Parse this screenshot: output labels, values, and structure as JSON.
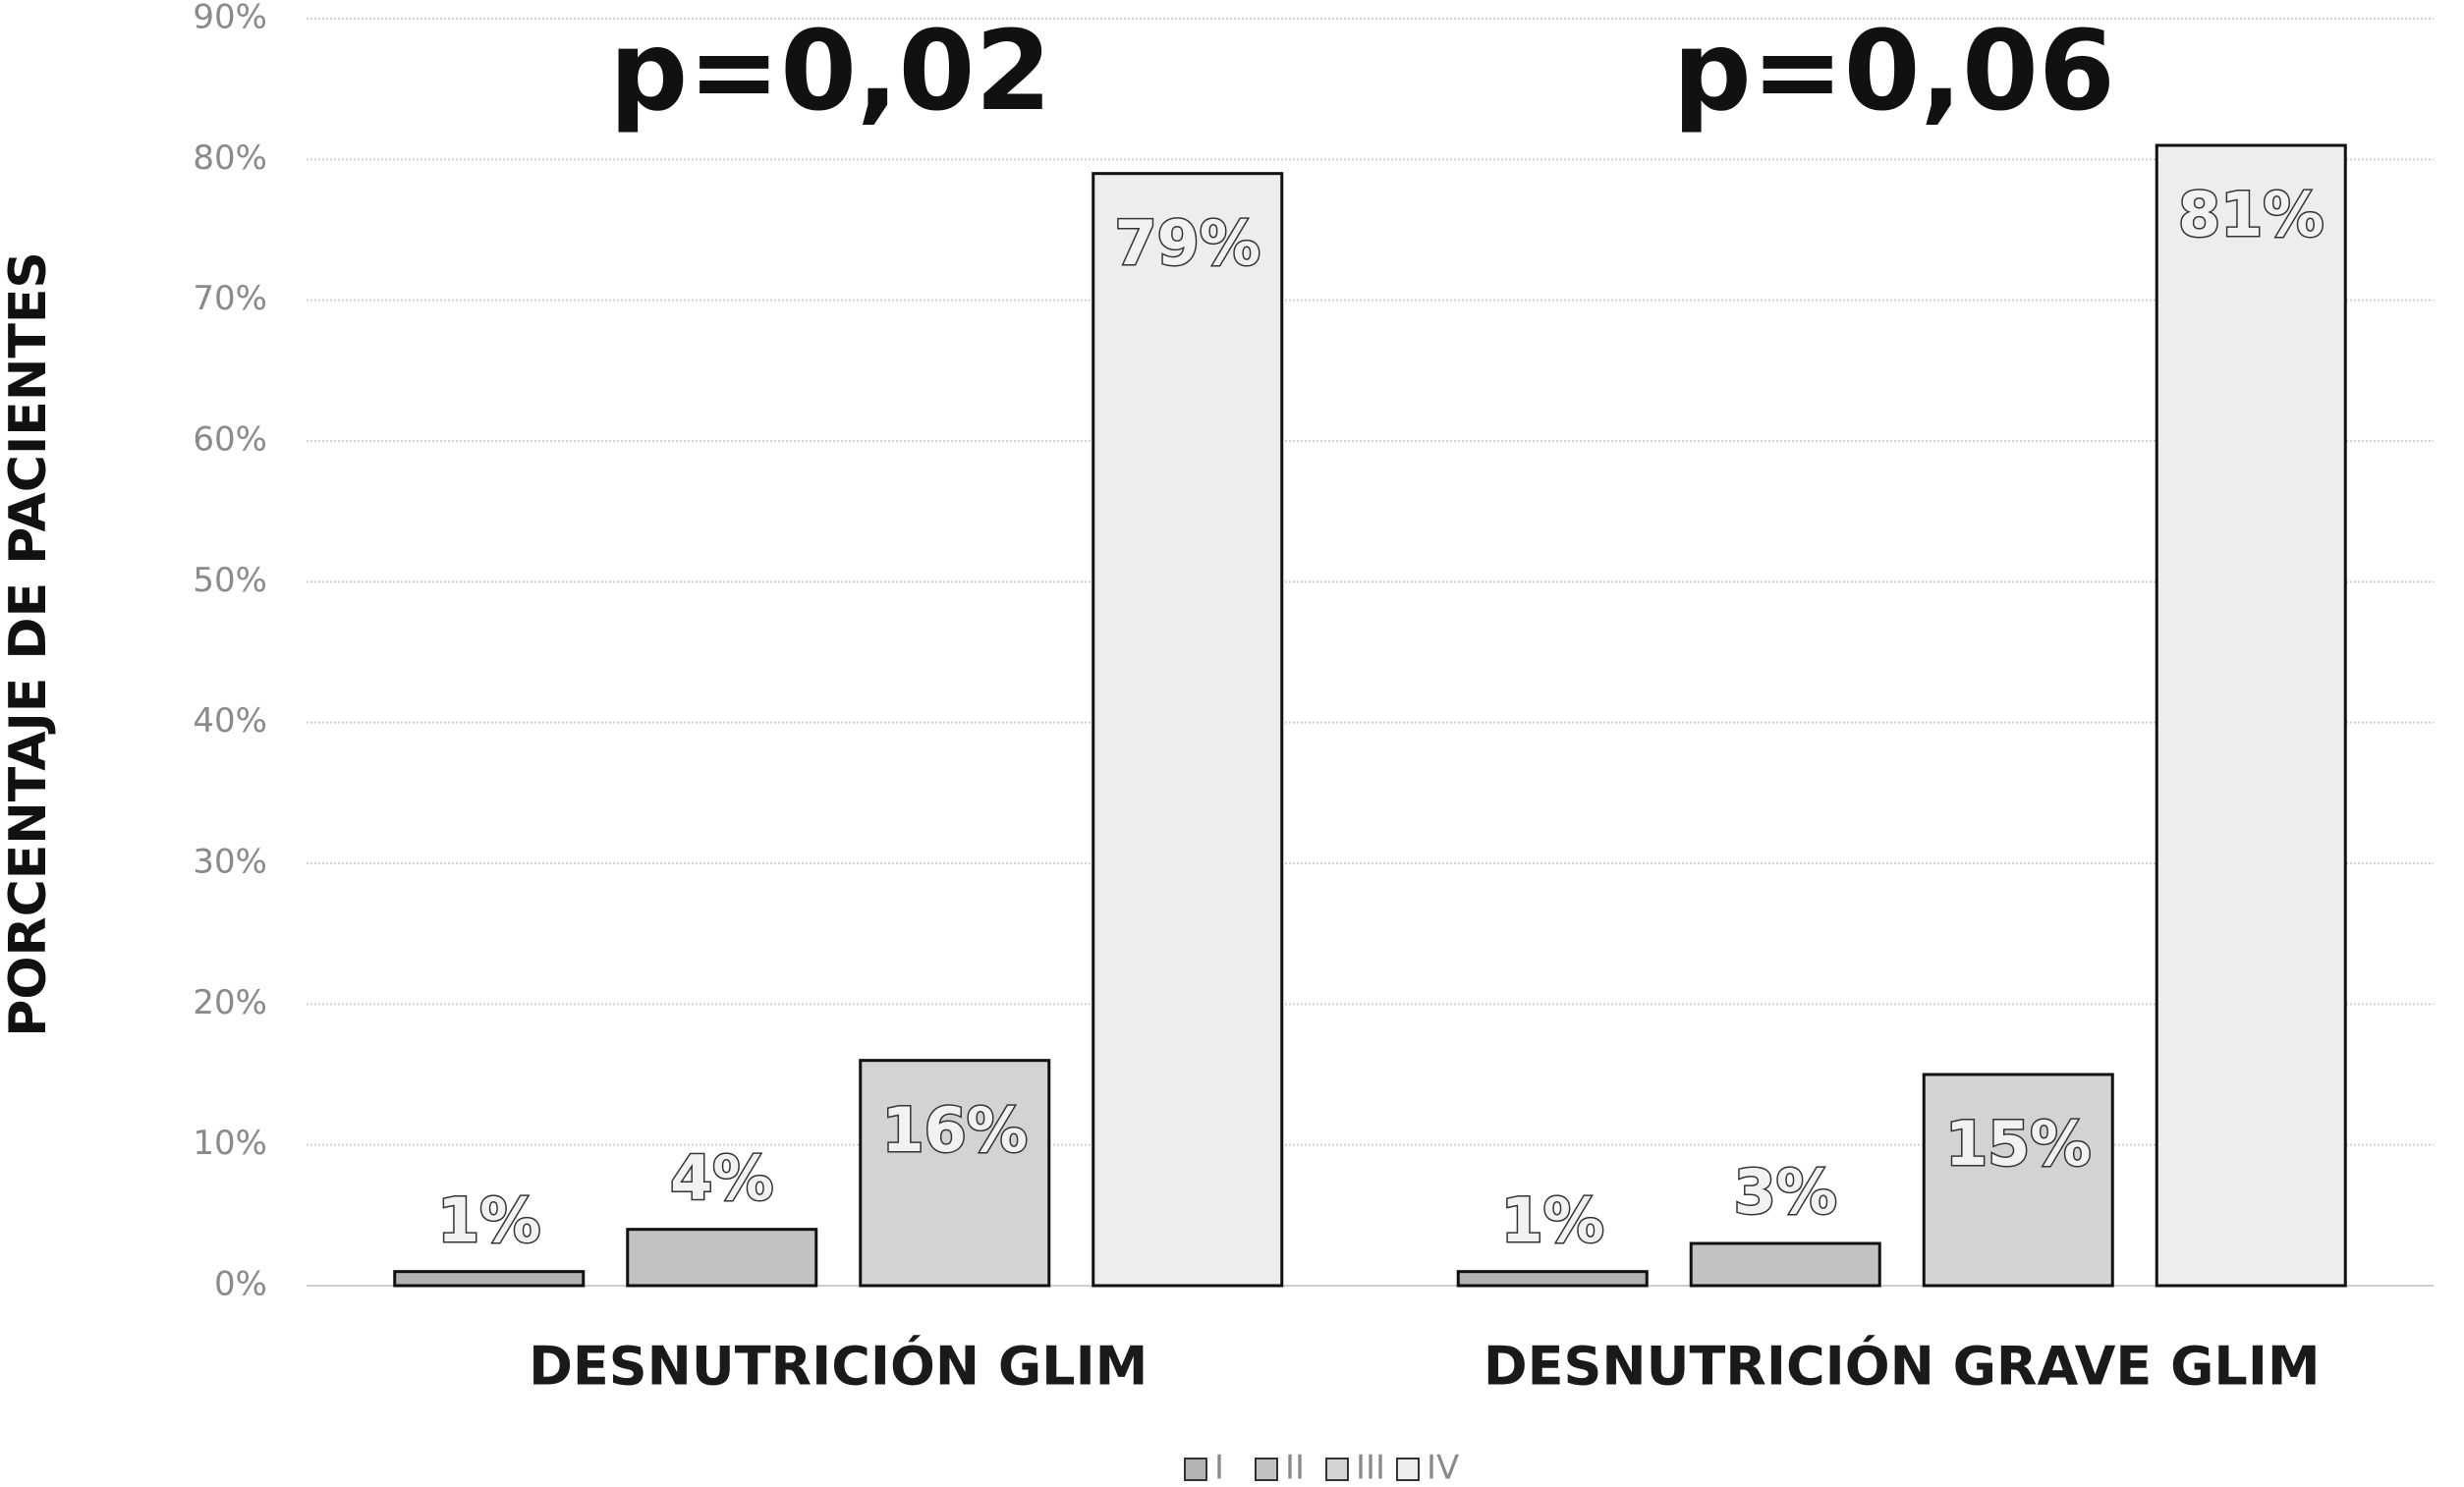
{
  "chart_data": {
    "type": "bar",
    "y_label": "PORCENTAJE DE PACIENTES",
    "annotations": [
      "p=0,02",
      "p=0,06"
    ],
    "categories": [
      "DESNUTRICIÓN GLIM",
      "DESNUTRICIÓN GRAVE GLIM"
    ],
    "series": [
      {
        "name": "I",
        "color": "#b3b3b3",
        "values": [
          1,
          1
        ],
        "value_labels": [
          "1%",
          "1%"
        ]
      },
      {
        "name": "II",
        "color": "#c2c2c2",
        "values": [
          4,
          3
        ],
        "value_labels": [
          "4%",
          "3%"
        ]
      },
      {
        "name": "III",
        "color": "#d3d3d3",
        "values": [
          16,
          15
        ],
        "value_labels": [
          "16%",
          "15%"
        ]
      },
      {
        "name": "IV",
        "color": "#ededed",
        "values": [
          79,
          81
        ],
        "value_labels": [
          "79%",
          "81%"
        ]
      }
    ],
    "ylim": [
      0,
      90
    ],
    "yticks": [
      {
        "value": 0,
        "label": "0%"
      },
      {
        "value": 10,
        "label": "10%"
      },
      {
        "value": 20,
        "label": "20%"
      },
      {
        "value": 30,
        "label": "30%"
      },
      {
        "value": 40,
        "label": "40%"
      },
      {
        "value": 50,
        "label": "50%"
      },
      {
        "value": 60,
        "label": "60%"
      },
      {
        "value": 70,
        "label": "70%"
      },
      {
        "value": 80,
        "label": "80%"
      },
      {
        "value": 90,
        "label": "90%"
      }
    ],
    "grid": true,
    "legend": "bottom"
  }
}
